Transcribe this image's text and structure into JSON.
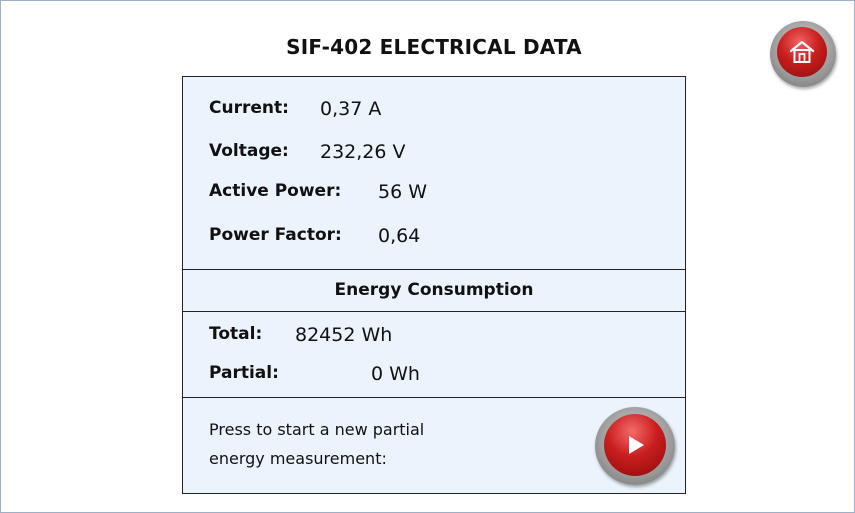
{
  "title": "SIF-402 ELECTRICAL DATA",
  "home_button": {
    "icon": "home-icon"
  },
  "measurements": {
    "current": {
      "label": "Current:",
      "value": "0,37 A"
    },
    "voltage": {
      "label": "Voltage:",
      "value": "232,26 V"
    },
    "active_power": {
      "label": "Active Power:",
      "value": "56 W"
    },
    "power_factor": {
      "label": "Power Factor:",
      "value": "0,64"
    }
  },
  "energy": {
    "heading": "Energy Consumption",
    "total": {
      "label": "Total:",
      "value": "82452 Wh"
    },
    "partial": {
      "label": "Partial:",
      "value": "0 Wh"
    }
  },
  "partial_reset": {
    "line1": "Press to start a new partial",
    "line2": "energy measurement:",
    "icon": "play-icon"
  },
  "colors": {
    "panel_background": "#ebf3fd",
    "button_red": "#c81d1d",
    "frame_border": "#9db0c8"
  }
}
